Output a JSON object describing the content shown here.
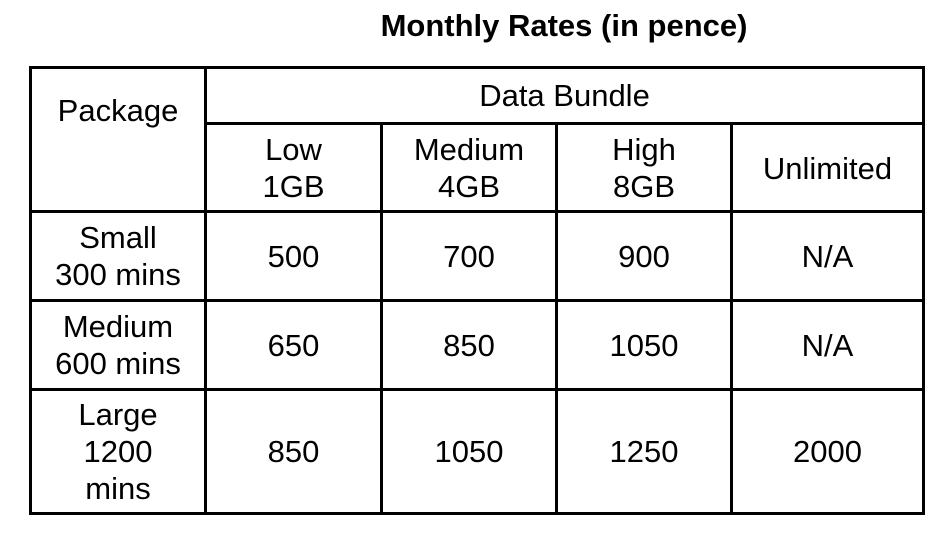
{
  "title": "Monthly Rates (in pence)",
  "table": {
    "package_header": "Package",
    "group_header": "Data Bundle",
    "columns": [
      {
        "line1": "Low",
        "line2": "1GB"
      },
      {
        "line1": "Medium",
        "line2": "4GB"
      },
      {
        "line1": "High",
        "line2": "8GB"
      },
      {
        "line1": "Unlimited",
        "line2": ""
      }
    ],
    "rows": [
      {
        "package_lines": [
          "Small",
          "300 mins"
        ],
        "values": [
          "500",
          "700",
          "900",
          "N/A"
        ]
      },
      {
        "package_lines": [
          "Medium",
          "600 mins"
        ],
        "values": [
          "650",
          "850",
          "1050",
          "N/A"
        ]
      },
      {
        "package_lines": [
          "Large",
          "1200",
          "mins"
        ],
        "values": [
          "850",
          "1050",
          "1250",
          "2000"
        ]
      }
    ]
  }
}
